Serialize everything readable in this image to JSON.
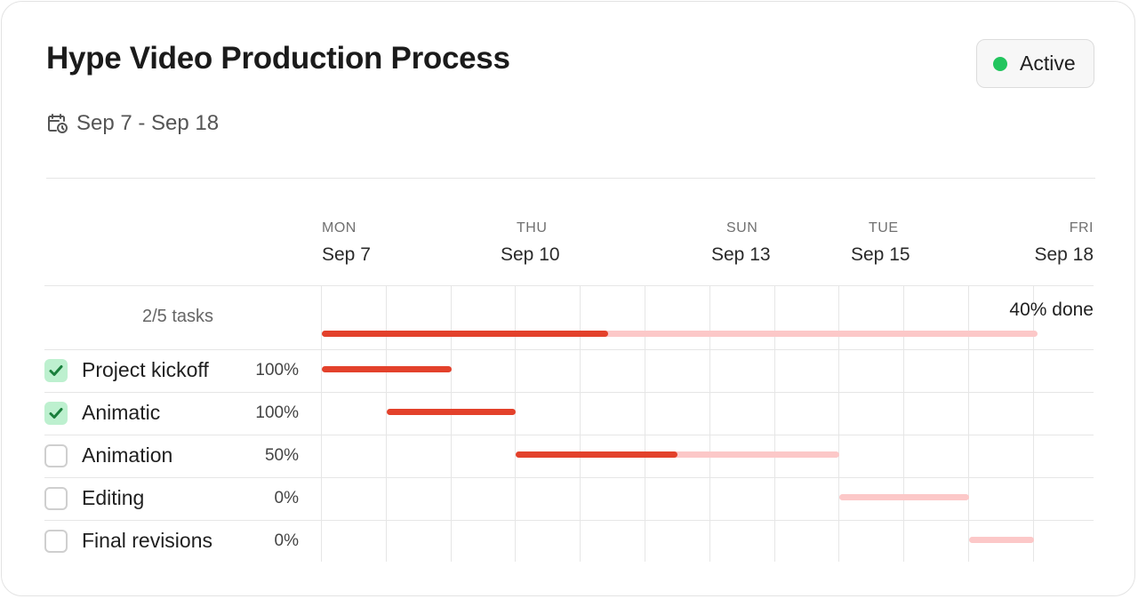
{
  "header": {
    "title": "Hype Video Production Process",
    "status_label": "Active",
    "status_color": "#22c55e",
    "date_range": "Sep 7 - Sep 18",
    "date_icon": "calendar-clock-icon"
  },
  "timeline": {
    "columns": [
      {
        "dow": "MON",
        "date": "Sep 7"
      },
      {
        "dow": "THU",
        "date": "Sep 10"
      },
      {
        "dow": "SUN",
        "date": "Sep 13"
      },
      {
        "dow": "TUE",
        "date": "Sep 15"
      },
      {
        "dow": "FRI",
        "date": "Sep 18"
      }
    ]
  },
  "summary": {
    "tasks_label": "2/5 tasks",
    "done_label": "40% done",
    "progress": 0.4
  },
  "tasks": [
    {
      "name": "Project kickoff",
      "pct": "100%",
      "checked": true,
      "start": "Sep 7",
      "end": "Sep 9",
      "progress": 1.0
    },
    {
      "name": "Animatic",
      "pct": "100%",
      "checked": true,
      "start": "Sep 8",
      "end": "Sep 10",
      "progress": 1.0
    },
    {
      "name": "Animation",
      "pct": "50%",
      "checked": false,
      "start": "Sep 10",
      "end": "Sep 15",
      "progress": 0.5
    },
    {
      "name": "Editing",
      "pct": "0%",
      "checked": false,
      "start": "Sep 15",
      "end": "Sep 17",
      "progress": 0.0
    },
    {
      "name": "Final revisions",
      "pct": "0%",
      "checked": false,
      "start": "Sep 17",
      "end": "Sep 18",
      "progress": 0.0
    }
  ],
  "colors": {
    "done": "#e3412b",
    "remaining": "#fcc8c8",
    "check_bg": "#bdf0cf",
    "check_mark": "#1a7f3c"
  }
}
